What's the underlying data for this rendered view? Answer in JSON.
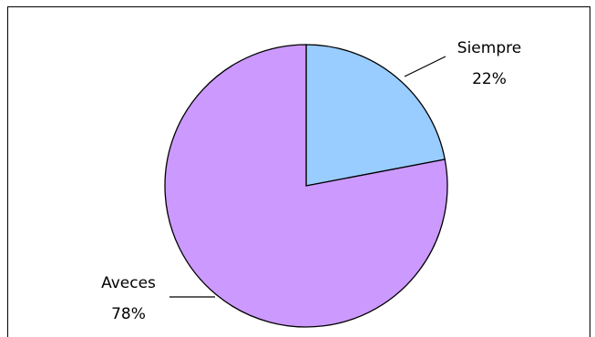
{
  "chart_data": {
    "type": "pie",
    "categories": [
      "Siempre",
      "Aveces"
    ],
    "values": [
      22,
      78
    ],
    "percent_labels": [
      "22%",
      "78%"
    ],
    "colors": [
      "#99ccff",
      "#cc99ff"
    ],
    "outline_color": "#000000",
    "start_angle": "12 o'clock",
    "direction": "clockwise",
    "legend": "none"
  }
}
